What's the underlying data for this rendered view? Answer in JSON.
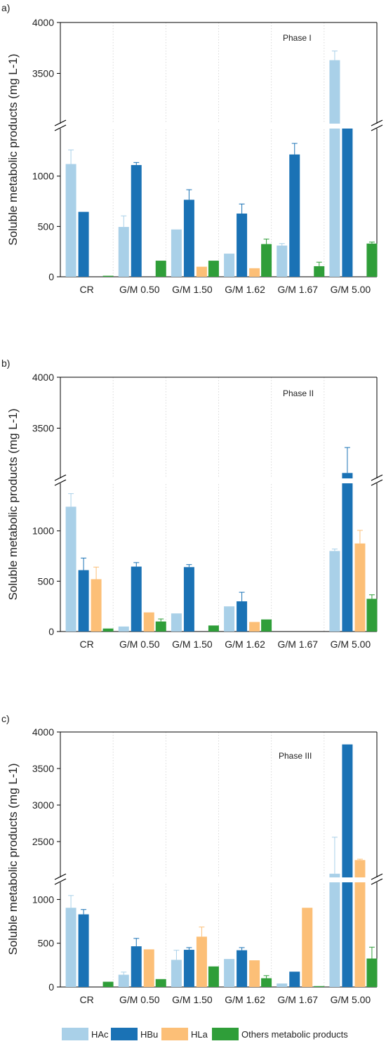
{
  "colors": {
    "HAc": "#a9d0e8",
    "HBu": "#1a72b5",
    "HLa": "#fcbf77",
    "Others": "#2f9e39"
  },
  "legend": [
    {
      "key": "HAc",
      "label": "HAc"
    },
    {
      "key": "HBu",
      "label": "HBu"
    },
    {
      "key": "HLa",
      "label": "HLa"
    },
    {
      "key": "Others",
      "label": "Others metabolic products"
    }
  ],
  "chart_data": [
    {
      "type": "bar",
      "panel": "a)",
      "annotation": "Phase I",
      "ylabel": "Soluble metabolic products (mg L-1)",
      "categories": [
        "CR",
        "G/M 0.50",
        "G/M 1.50",
        "G/M 1.62",
        "G/M 1.67",
        "G/M 5.00"
      ],
      "lower_ticks": [
        "0",
        "500",
        "1000"
      ],
      "upper_ticks": [
        "3500",
        "4000"
      ],
      "lower_range": [
        0,
        1500
      ],
      "upper_range": [
        3000,
        4000
      ],
      "series": [
        {
          "name": "HAc",
          "values": [
            1120,
            495,
            470,
            230,
            310,
            3630
          ],
          "errors": [
            140,
            110,
            0,
            0,
            20,
            90
          ]
        },
        {
          "name": "HBu",
          "values": [
            645,
            1110,
            765,
            628,
            1215,
            1500
          ],
          "errors": [
            0,
            25,
            100,
            95,
            110,
            0
          ]
        },
        {
          "name": "HLa",
          "values": [
            0,
            0,
            100,
            85,
            0,
            0
          ],
          "errors": [
            0,
            0,
            0,
            0,
            0,
            0
          ]
        },
        {
          "name": "Others",
          "values": [
            10,
            160,
            160,
            325,
            105,
            330
          ],
          "errors": [
            0,
            0,
            0,
            50,
            40,
            15
          ]
        }
      ]
    },
    {
      "type": "bar",
      "panel": "b)",
      "annotation": "Phase II",
      "ylabel": "Soluble metabolic products (mg L-1)",
      "categories": [
        "CR",
        "G/M 0.50",
        "G/M 1.50",
        "G/M 1.62",
        "G/M 1.67",
        "G/M 5.00"
      ],
      "lower_ticks": [
        "0",
        "500",
        "1000"
      ],
      "upper_ticks": [
        "3500",
        "4000"
      ],
      "lower_range": [
        0,
        1500
      ],
      "upper_range": [
        3000,
        4000
      ],
      "series": [
        {
          "name": "HAc",
          "values": [
            1240,
            50,
            180,
            250,
            0,
            800
          ],
          "errors": [
            130,
            0,
            0,
            0,
            0,
            20
          ]
        },
        {
          "name": "HBu",
          "values": [
            610,
            645,
            640,
            300,
            0,
            3060
          ],
          "errors": [
            120,
            40,
            25,
            90,
            0,
            250
          ]
        },
        {
          "name": "HLa",
          "values": [
            520,
            190,
            0,
            95,
            0,
            875
          ],
          "errors": [
            120,
            0,
            0,
            0,
            0,
            130
          ]
        },
        {
          "name": "Others",
          "values": [
            30,
            100,
            60,
            120,
            0,
            325
          ],
          "errors": [
            0,
            25,
            0,
            0,
            0,
            40
          ]
        }
      ]
    },
    {
      "type": "bar",
      "panel": "c)",
      "annotation": "Phase III",
      "ylabel": "Soluble metabolic products (mg L-1)",
      "categories": [
        "CR",
        "G/M 0.50",
        "G/M 1.50",
        "G/M 1.62",
        "G/M 1.67",
        "G/M 5.00"
      ],
      "lower_ticks": [
        "0",
        "500",
        "1000"
      ],
      "upper_ticks": [
        "2500",
        "3000",
        "3500",
        "4000"
      ],
      "lower_range": [
        0,
        1500
      ],
      "upper_range": [
        2000,
        4000
      ],
      "series": [
        {
          "name": "HAc",
          "values": [
            905,
            140,
            310,
            320,
            40,
            2060
          ],
          "errors": [
            140,
            30,
            110,
            0,
            0,
            500
          ]
        },
        {
          "name": "HBu",
          "values": [
            830,
            465,
            425,
            420,
            175,
            3830
          ],
          "errors": [
            55,
            90,
            25,
            30,
            0,
            0
          ]
        },
        {
          "name": "HLa",
          "values": [
            0,
            430,
            575,
            305,
            905,
            1450
          ],
          "errors": [
            0,
            0,
            110,
            0,
            0,
            10
          ]
        },
        {
          "name": "Others",
          "values": [
            60,
            90,
            235,
            100,
            10,
            325
          ],
          "errors": [
            0,
            0,
            0,
            30,
            0,
            130
          ]
        }
      ]
    }
  ]
}
